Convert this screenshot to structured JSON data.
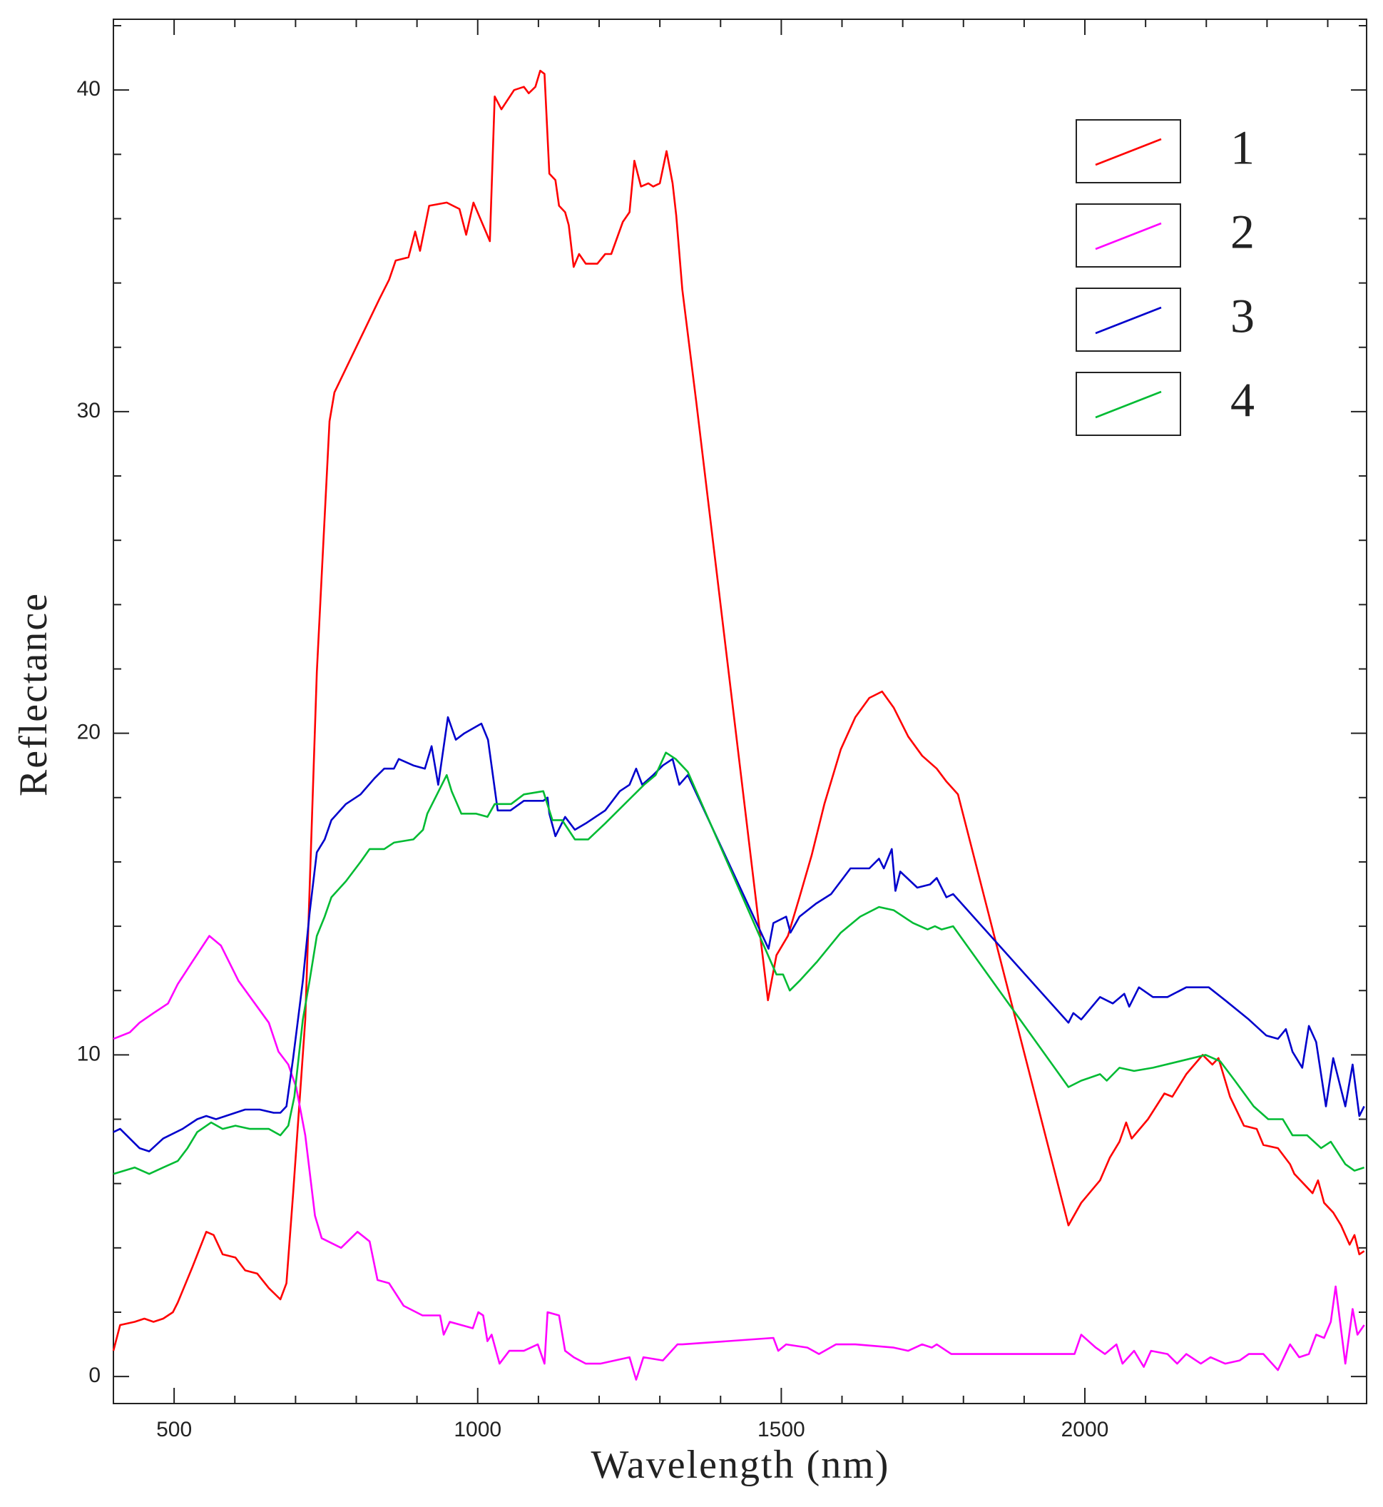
{
  "chart_data": {
    "type": "line",
    "xlabel": "Wavelength (nm)",
    "ylabel": "Reflectance",
    "xlim": [
      400,
      2464
    ],
    "ylim": [
      -0.84,
      42.2
    ],
    "xticks": [
      500,
      1000,
      1500,
      2000
    ],
    "yticks": [
      0,
      10,
      20,
      30,
      40
    ],
    "xminor_ticks": [
      400,
      600,
      700,
      800,
      900,
      1100,
      1200,
      1300,
      1400,
      1600,
      1700,
      1800,
      1900,
      2100,
      2200,
      2300,
      2400
    ],
    "yminor_ticks": [
      2,
      4,
      6,
      8,
      12,
      14,
      16,
      18,
      22,
      24,
      26,
      28,
      32,
      34,
      36,
      38,
      42
    ],
    "grid": false,
    "legend": "upper right",
    "series": [
      {
        "name": "1",
        "color": "#ff0000",
        "x": [
          400,
          411,
          435,
          451,
          466,
          482,
          498,
          506,
          530,
          553,
          565,
          580,
          601,
          617,
          637,
          656,
          675,
          685,
          696,
          716,
          735,
          743,
          756,
          764,
          838,
          854,
          865,
          886,
          897,
          905,
          920,
          949,
          970,
          981,
          993,
          1020,
          1028,
          1039,
          1060,
          1076,
          1084,
          1095,
          1103,
          1110,
          1118,
          1128,
          1134,
          1144,
          1150,
          1158,
          1167,
          1178,
          1197,
          1210,
          1220,
          1239,
          1250,
          1258,
          1269,
          1281,
          1289,
          1300,
          1311,
          1321,
          1327,
          1337,
          1360,
          1478,
          1492,
          1511,
          1530,
          1550,
          1571,
          1598,
          1622,
          1645,
          1666,
          1685,
          1709,
          1732,
          1756,
          1772,
          1791,
          1973,
          1994,
          2025,
          2041,
          2057,
          2068,
          2077,
          2104,
          2131,
          2144,
          2167,
          2194,
          2210,
          2220,
          2239,
          2262,
          2283,
          2294,
          2318,
          2338,
          2345,
          2360,
          2375,
          2384,
          2394,
          2409,
          2422,
          2436,
          2444,
          2452,
          2460
        ],
        "values": [
          0.8,
          1.6,
          1.7,
          1.8,
          1.7,
          1.8,
          2.0,
          2.3,
          3.4,
          4.5,
          4.4,
          3.8,
          3.7,
          3.3,
          3.2,
          2.75,
          2.4,
          2.9,
          5.7,
          11.1,
          21.9,
          24.9,
          29.7,
          30.6,
          33.5,
          34.1,
          34.7,
          34.8,
          35.6,
          35.0,
          36.4,
          36.5,
          36.3,
          35.5,
          36.5,
          35.3,
          39.8,
          39.4,
          40.0,
          40.1,
          39.9,
          40.1,
          40.6,
          40.5,
          37.4,
          37.2,
          36.4,
          36.2,
          35.8,
          34.5,
          34.9,
          34.6,
          34.6,
          34.9,
          34.9,
          35.9,
          36.2,
          37.8,
          37.0,
          37.1,
          37.0,
          37.1,
          38.1,
          37.1,
          36.1,
          33.8,
          30.3,
          11.7,
          13.1,
          13.7,
          14.9,
          16.2,
          17.8,
          19.5,
          20.5,
          21.1,
          21.3,
          20.8,
          19.9,
          19.3,
          18.9,
          18.5,
          18.1,
          4.7,
          5.4,
          6.1,
          6.8,
          7.3,
          7.9,
          7.4,
          8.0,
          8.8,
          8.7,
          9.4,
          10.0,
          9.7,
          9.9,
          8.7,
          7.8,
          7.7,
          7.2,
          7.1,
          6.6,
          6.3,
          6.0,
          5.7,
          6.1,
          5.4,
          5.1,
          4.7,
          4.1,
          4.4,
          3.8,
          3.9
        ]
      },
      {
        "name": "2",
        "color": "#ff00ff",
        "x": [
          400,
          427,
          443,
          466,
          490,
          506,
          530,
          558,
          577,
          606,
          633,
          656,
          672,
          688,
          701,
          716,
          732,
          743,
          775,
          802,
          822,
          835,
          854,
          878,
          909,
          938,
          944,
          954,
          973,
          992,
          1001,
          1009,
          1016,
          1023,
          1036,
          1052,
          1076,
          1099,
          1110,
          1115,
          1134,
          1144,
          1158,
          1178,
          1202,
          1226,
          1250,
          1261,
          1273,
          1305,
          1329,
          1337,
          1487,
          1495,
          1508,
          1543,
          1562,
          1590,
          1622,
          1685,
          1709,
          1732,
          1748,
          1756,
          1780,
          1983,
          1994,
          2018,
          2033,
          2052,
          2062,
          2081,
          2097,
          2109,
          2136,
          2152,
          2167,
          2191,
          2207,
          2231,
          2255,
          2270,
          2294,
          2318,
          2338,
          2353,
          2369,
          2381,
          2394,
          2405,
          2413,
          2429,
          2441,
          2449,
          2460
        ],
        "values": [
          10.5,
          10.7,
          11.0,
          11.3,
          11.6,
          12.2,
          12.9,
          13.7,
          13.4,
          12.3,
          11.6,
          11.0,
          10.1,
          9.7,
          9.0,
          7.5,
          5.0,
          4.3,
          4.0,
          4.5,
          4.2,
          3.0,
          2.9,
          2.2,
          1.9,
          1.9,
          1.3,
          1.7,
          1.6,
          1.5,
          2.0,
          1.9,
          1.1,
          1.3,
          0.4,
          0.8,
          0.8,
          1.0,
          0.4,
          2.0,
          1.9,
          0.8,
          0.6,
          0.4,
          0.4,
          0.5,
          0.6,
          -0.1,
          0.6,
          0.5,
          1.0,
          1.0,
          1.2,
          0.8,
          1.0,
          0.9,
          0.7,
          1.0,
          1.0,
          0.9,
          0.8,
          1.0,
          0.9,
          1.0,
          0.7,
          0.7,
          1.3,
          0.9,
          0.7,
          1.0,
          0.4,
          0.8,
          0.3,
          0.8,
          0.7,
          0.4,
          0.7,
          0.4,
          0.6,
          0.4,
          0.5,
          0.7,
          0.7,
          0.2,
          1.0,
          0.6,
          0.7,
          1.3,
          1.2,
          1.7,
          2.8,
          0.4,
          2.1,
          1.3,
          1.6
        ]
      },
      {
        "name": "3",
        "color": "#0000cc",
        "x": [
          400,
          411,
          443,
          459,
          482,
          514,
          538,
          553,
          569,
          617,
          641,
          664,
          675,
          685,
          696,
          712,
          723,
          735,
          748,
          759,
          783,
          807,
          830,
          846,
          862,
          870,
          894,
          913,
          924,
          935,
          951,
          964,
          978,
          1006,
          1017,
          1033,
          1054,
          1076,
          1108,
          1115,
          1118,
          1128,
          1144,
          1160,
          1178,
          1210,
          1234,
          1250,
          1261,
          1271,
          1289,
          1305,
          1321,
          1332,
          1346,
          1479,
          1487,
          1508,
          1515,
          1530,
          1557,
          1582,
          1614,
          1645,
          1661,
          1669,
          1682,
          1688,
          1696,
          1724,
          1745,
          1756,
          1772,
          1783,
          1973,
          1981,
          1994,
          2025,
          2046,
          2065,
          2073,
          2089,
          2112,
          2136,
          2167,
          2204,
          2231,
          2270,
          2299,
          2318,
          2331,
          2342,
          2358,
          2369,
          2381,
          2397,
          2409,
          2429,
          2441,
          2452,
          2460
        ],
        "values": [
          7.6,
          7.7,
          7.1,
          7.0,
          7.4,
          7.7,
          8.0,
          8.1,
          8.0,
          8.3,
          8.3,
          8.2,
          8.2,
          8.4,
          9.9,
          12.3,
          14.4,
          16.3,
          16.7,
          17.3,
          17.8,
          18.1,
          18.6,
          18.9,
          18.9,
          19.2,
          19.0,
          18.9,
          19.6,
          18.4,
          20.5,
          19.8,
          20.0,
          20.3,
          19.8,
          17.6,
          17.6,
          17.9,
          17.9,
          18.0,
          17.5,
          16.8,
          17.4,
          17.0,
          17.2,
          17.6,
          18.2,
          18.4,
          18.9,
          18.4,
          18.7,
          19.0,
          19.2,
          18.4,
          18.7,
          13.3,
          14.1,
          14.3,
          13.8,
          14.3,
          14.7,
          15.0,
          15.8,
          15.8,
          16.1,
          15.8,
          16.4,
          15.1,
          15.7,
          15.2,
          15.3,
          15.5,
          14.9,
          15.0,
          11.0,
          11.3,
          11.1,
          11.8,
          11.6,
          11.9,
          11.5,
          12.1,
          11.8,
          11.8,
          12.1,
          12.1,
          11.7,
          11.1,
          10.6,
          10.5,
          10.8,
          10.1,
          9.6,
          10.9,
          10.4,
          8.4,
          9.9,
          8.4,
          9.7,
          8.1,
          8.4
        ]
      },
      {
        "name": "4",
        "color": "#00bb33",
        "x": [
          400,
          435,
          459,
          482,
          506,
          522,
          538,
          561,
          580,
          601,
          625,
          656,
          675,
          688,
          698,
          712,
          723,
          735,
          748,
          759,
          783,
          807,
          822,
          846,
          862,
          894,
          910,
          917,
          933,
          949,
          957,
          973,
          997,
          1016,
          1028,
          1055,
          1076,
          1108,
          1123,
          1139,
          1160,
          1182,
          1210,
          1258,
          1274,
          1293,
          1310,
          1326,
          1346,
          1492,
          1503,
          1514,
          1530,
          1559,
          1598,
          1630,
          1661,
          1685,
          1717,
          1741,
          1753,
          1764,
          1783,
          1973,
          1994,
          2025,
          2036,
          2057,
          2081,
          2112,
          2199,
          2223,
          2247,
          2278,
          2302,
          2326,
          2342,
          2366,
          2389,
          2405,
          2429,
          2444,
          2460
        ],
        "values": [
          6.3,
          6.5,
          6.3,
          6.5,
          6.7,
          7.1,
          7.6,
          7.9,
          7.7,
          7.8,
          7.7,
          7.7,
          7.5,
          7.8,
          8.7,
          11.1,
          12.3,
          13.7,
          14.3,
          14.9,
          15.4,
          16.0,
          16.4,
          16.4,
          16.6,
          16.7,
          17.0,
          17.5,
          18.1,
          18.7,
          18.2,
          17.5,
          17.5,
          17.4,
          17.8,
          17.8,
          18.1,
          18.2,
          17.3,
          17.3,
          16.7,
          16.7,
          17.2,
          18.1,
          18.4,
          18.7,
          19.4,
          19.2,
          18.8,
          12.5,
          12.5,
          12.0,
          12.3,
          12.9,
          13.8,
          14.3,
          14.6,
          14.5,
          14.1,
          13.9,
          14.0,
          13.9,
          14.0,
          9.0,
          9.2,
          9.4,
          9.2,
          9.6,
          9.5,
          9.6,
          10.0,
          9.8,
          9.2,
          8.4,
          8.0,
          8.0,
          7.5,
          7.5,
          7.1,
          7.3,
          6.6,
          6.4,
          6.5
        ]
      }
    ]
  }
}
